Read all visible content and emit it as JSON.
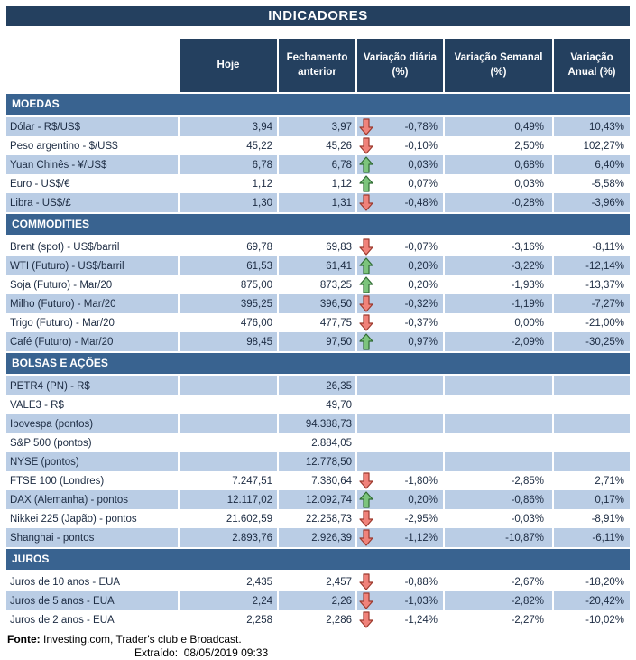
{
  "title": "INDICADORES",
  "columns": {
    "hoje": "Hoje",
    "fechamento": "Fechamento\nanterior",
    "diaria": "Variação diária\n(%)",
    "semanal": "Variação Semanal\n(%)",
    "anual": "Variação\nAnual (%)"
  },
  "colors": {
    "navy_header": "#24405f",
    "section_blue": "#396390",
    "row_stripe_blue": "#bacde5",
    "arrow_up_fill": "#7cc47c",
    "arrow_up_stroke": "#2f6b33",
    "arrow_down_fill": "#f0827a",
    "arrow_down_stroke": "#9c3a2e"
  },
  "sections": [
    {
      "name": "MOEDAS",
      "stripe_start": "blue",
      "rows": [
        {
          "label": "Dólar - R$/US$",
          "hoje": "3,94",
          "fechamento": "3,97",
          "arrow": "down",
          "diaria": "-0,78%",
          "semanal": "0,49%",
          "anual": "10,43%"
        },
        {
          "label": "Peso argentino - $/US$",
          "hoje": "45,22",
          "fechamento": "45,26",
          "arrow": "down",
          "diaria": "-0,10%",
          "semanal": "2,50%",
          "anual": "102,27%"
        },
        {
          "label": "Yuan Chinês - ¥/US$",
          "hoje": "6,78",
          "fechamento": "6,78",
          "arrow": "up",
          "diaria": "0,03%",
          "semanal": "0,68%",
          "anual": "6,40%"
        },
        {
          "label": "Euro - US$/€",
          "hoje": "1,12",
          "fechamento": "1,12",
          "arrow": "up",
          "diaria": "0,07%",
          "semanal": "0,03%",
          "anual": "-5,58%"
        },
        {
          "label": "Libra - US$/£",
          "hoje": "1,30",
          "fechamento": "1,31",
          "arrow": "down",
          "diaria": "-0,48%",
          "semanal": "-0,28%",
          "anual": "-3,96%"
        }
      ]
    },
    {
      "name": "COMMODITIES",
      "stripe_start": "white",
      "rows": [
        {
          "label": "Brent (spot) - US$/barril",
          "hoje": "69,78",
          "fechamento": "69,83",
          "arrow": "down",
          "diaria": "-0,07%",
          "semanal": "-3,16%",
          "anual": "-8,11%"
        },
        {
          "label": "WTI (Futuro) - US$/barril",
          "hoje": "61,53",
          "fechamento": "61,41",
          "arrow": "up",
          "diaria": "0,20%",
          "semanal": "-3,22%",
          "anual": "-12,14%"
        },
        {
          "label": "Soja (Futuro) - Mar/20",
          "hoje": "875,00",
          "fechamento": "873,25",
          "arrow": "up",
          "diaria": "0,20%",
          "semanal": "-1,93%",
          "anual": "-13,37%"
        },
        {
          "label": "Milho (Futuro) - Mar/20",
          "hoje": "395,25",
          "fechamento": "396,50",
          "arrow": "down",
          "diaria": "-0,32%",
          "semanal": "-1,19%",
          "anual": "-7,27%"
        },
        {
          "label": "Trigo (Futuro) - Mar/20",
          "hoje": "476,00",
          "fechamento": "477,75",
          "arrow": "down",
          "diaria": "-0,37%",
          "semanal": "0,00%",
          "anual": "-21,00%"
        },
        {
          "label": "Café (Futuro) - Mar/20",
          "hoje": "98,45",
          "fechamento": "97,50",
          "arrow": "up",
          "diaria": "0,97%",
          "semanal": "-2,09%",
          "anual": "-30,25%"
        }
      ]
    },
    {
      "name": "BOLSAS E AÇÕES",
      "stripe_start": "blue",
      "rows": [
        {
          "label": "PETR4 (PN) - R$",
          "hoje": "",
          "fechamento": "26,35",
          "arrow": null,
          "diaria": "",
          "semanal": "",
          "anual": ""
        },
        {
          "label": "VALE3 - R$",
          "hoje": "",
          "fechamento": "49,70",
          "arrow": null,
          "diaria": "",
          "semanal": "",
          "anual": ""
        },
        {
          "label": "Ibovespa (pontos)",
          "hoje": "",
          "fechamento": "94.388,73",
          "arrow": null,
          "diaria": "",
          "semanal": "",
          "anual": ""
        },
        {
          "label": "S&P 500 (pontos)",
          "hoje": "",
          "fechamento": "2.884,05",
          "arrow": null,
          "diaria": "",
          "semanal": "",
          "anual": ""
        },
        {
          "label": "NYSE (pontos)",
          "hoje": "",
          "fechamento": "12.778,50",
          "arrow": null,
          "diaria": "",
          "semanal": "",
          "anual": ""
        },
        {
          "label": "FTSE 100 (Londres)",
          "hoje": "7.247,51",
          "fechamento": "7.380,64",
          "arrow": "down",
          "diaria": "-1,80%",
          "semanal": "-2,85%",
          "anual": "2,71%"
        },
        {
          "label": "DAX (Alemanha) - pontos",
          "hoje": "12.117,02",
          "fechamento": "12.092,74",
          "arrow": "up",
          "diaria": "0,20%",
          "semanal": "-0,86%",
          "anual": "0,17%"
        },
        {
          "label": "Nikkei 225 (Japão) - pontos",
          "hoje": "21.602,59",
          "fechamento": "22.258,73",
          "arrow": "down",
          "diaria": "-2,95%",
          "semanal": "-0,03%",
          "anual": "-8,91%"
        },
        {
          "label": "Shanghai - pontos",
          "hoje": "2.893,76",
          "fechamento": "2.926,39",
          "arrow": "down",
          "diaria": "-1,12%",
          "semanal": "-10,87%",
          "anual": "-6,11%"
        }
      ]
    },
    {
      "name": "JUROS",
      "stripe_start": "white",
      "rows": [
        {
          "label": "Juros de 10 anos - EUA",
          "hoje": "2,435",
          "fechamento": "2,457",
          "arrow": "down",
          "diaria": "-0,88%",
          "semanal": "-2,67%",
          "anual": "-18,20%"
        },
        {
          "label": "Juros de 5 anos - EUA",
          "hoje": "2,24",
          "fechamento": "2,26",
          "arrow": "down",
          "diaria": "-1,03%",
          "semanal": "-2,82%",
          "anual": "-20,42%"
        },
        {
          "label": "Juros de 2 anos - EUA",
          "hoje": "2,258",
          "fechamento": "2,286",
          "arrow": "down",
          "diaria": "-1,24%",
          "semanal": "-2,27%",
          "anual": "-10,02%"
        }
      ]
    }
  ],
  "footer": {
    "fonte_label": "Fonte:",
    "fonte_text": " Investing.com, Trader's club e Broadcast.",
    "extraido_label": "Extraído:",
    "extraido_value": "08/05/2019 09:33"
  }
}
